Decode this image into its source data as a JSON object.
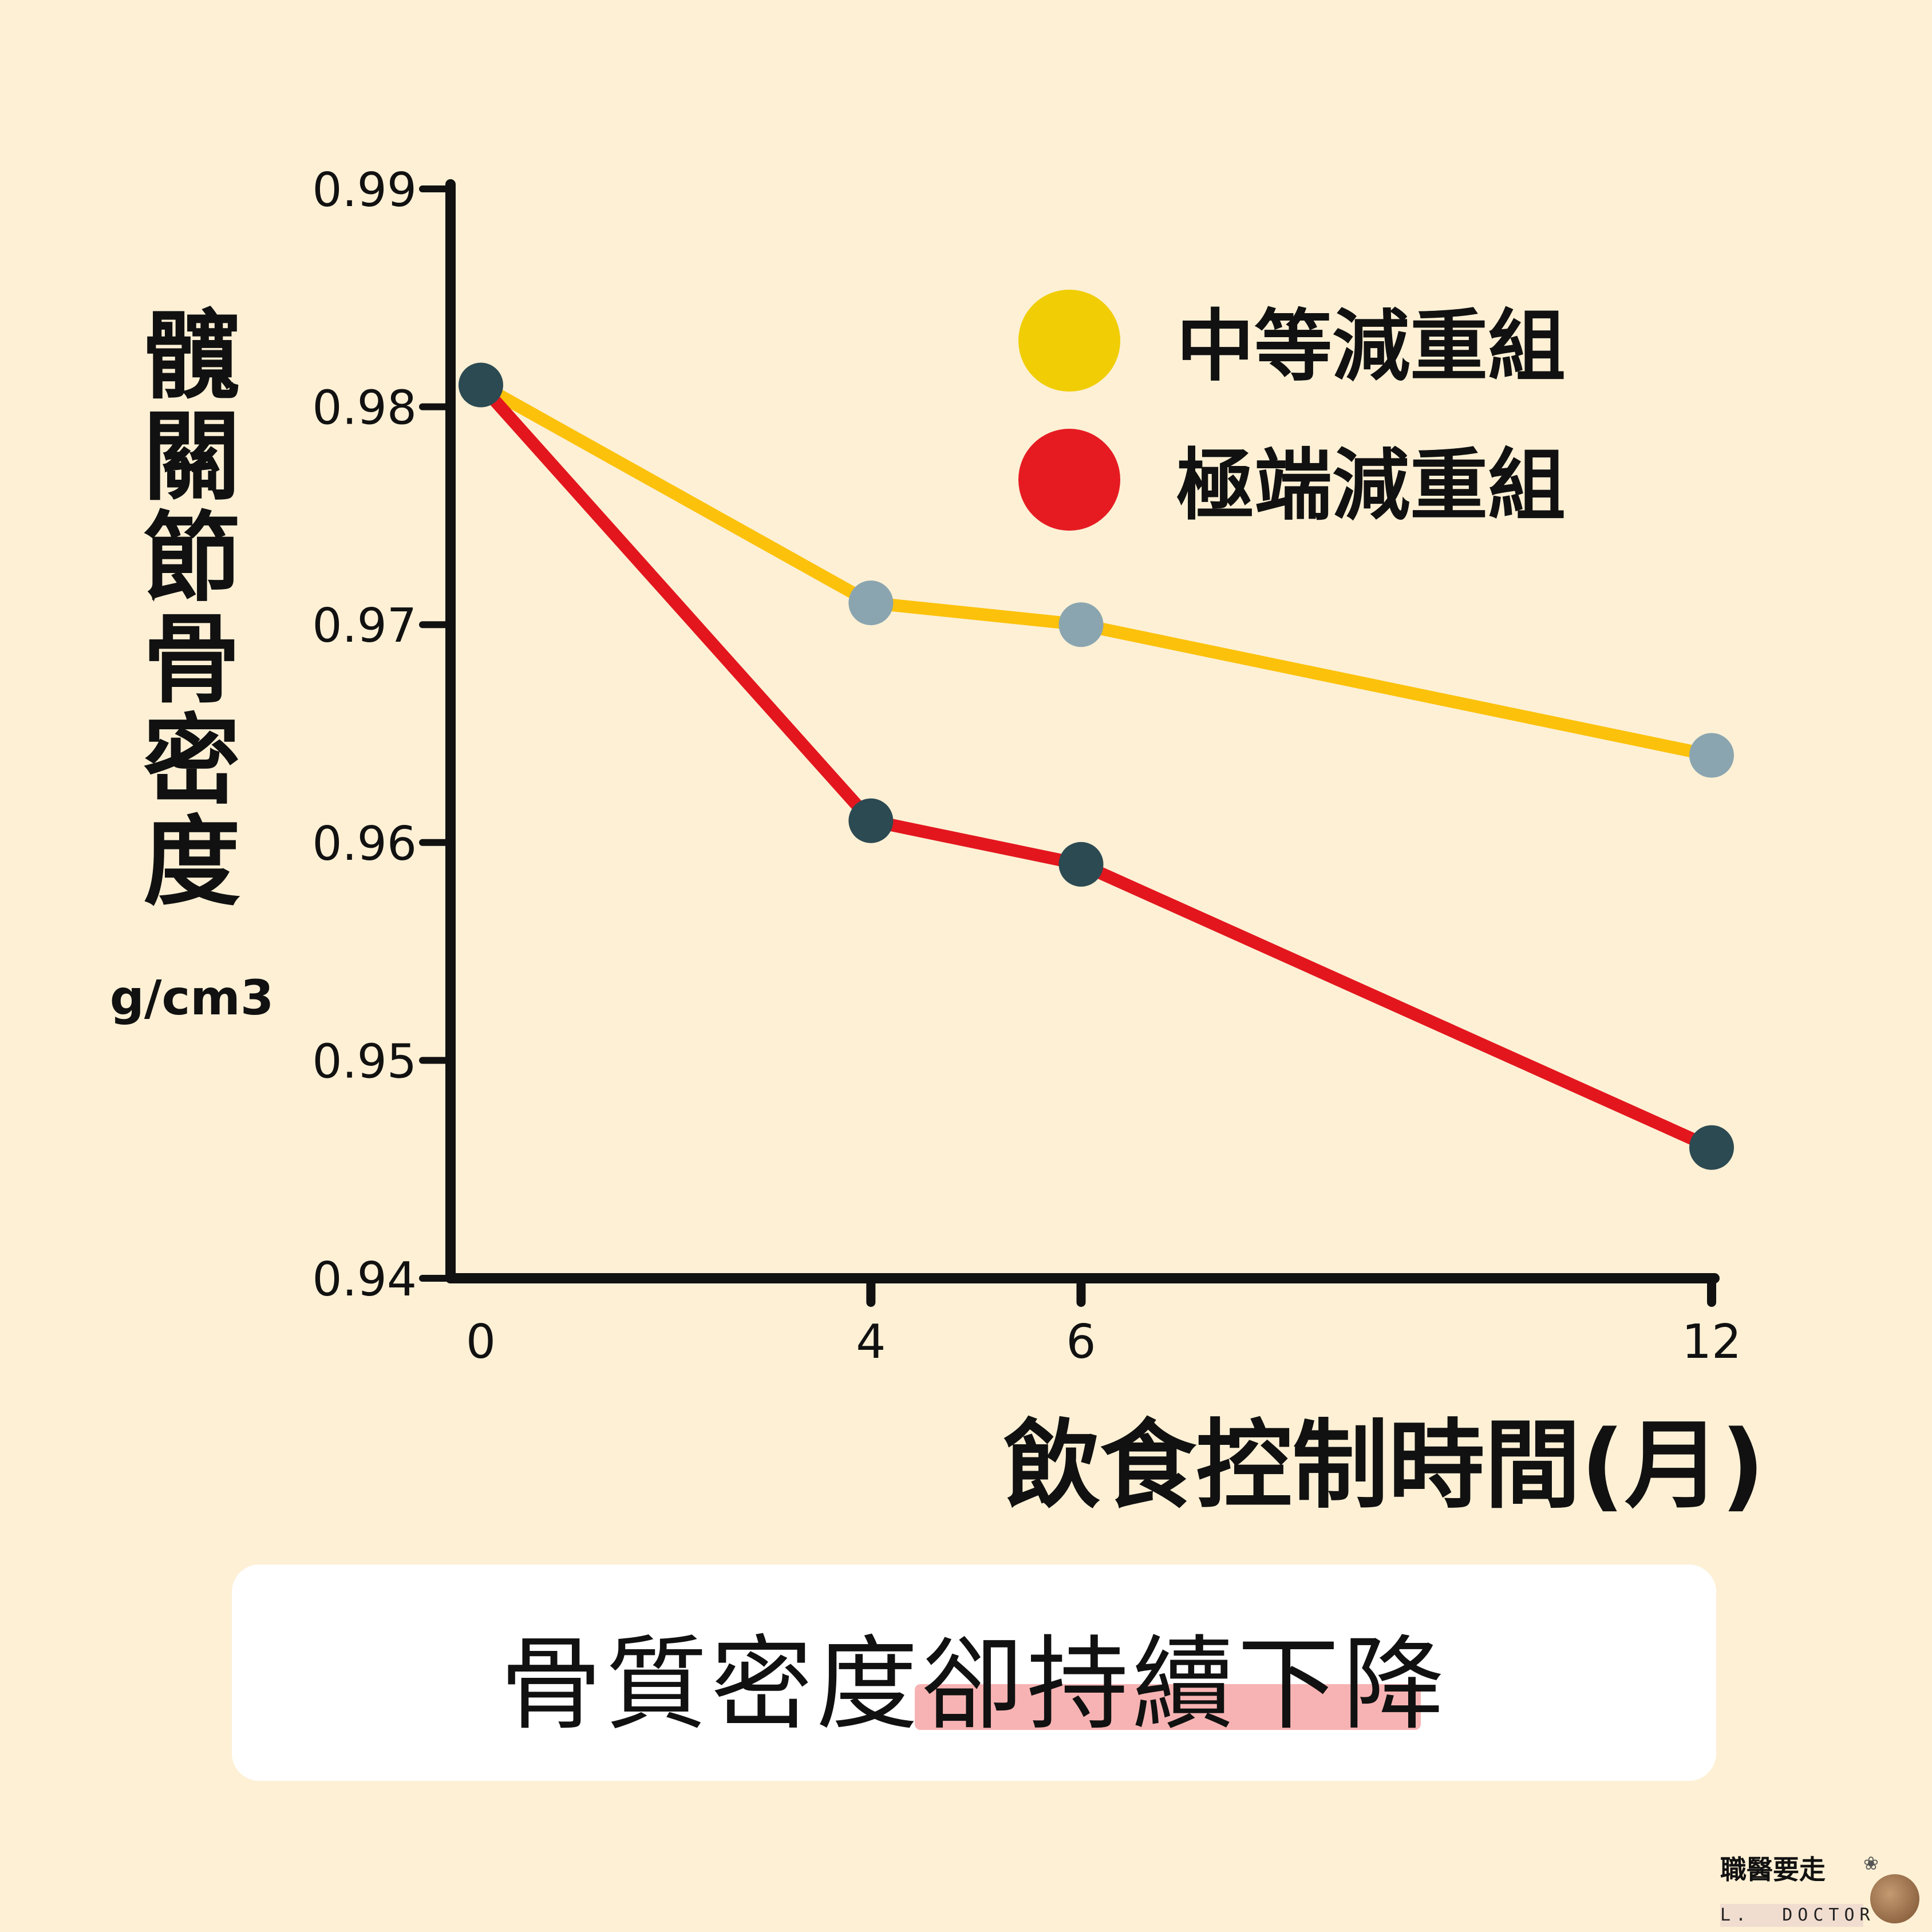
{
  "chart_data": {
    "type": "line",
    "title": "",
    "ylabel": "髖關節骨密度",
    "yunit": "g/cm3",
    "xlabel": "飲食控制時間(月)",
    "x": [
      0,
      4,
      6,
      12
    ],
    "x_ticks": [
      "0",
      "4",
      "6",
      "12"
    ],
    "ylim": [
      0.94,
      0.99
    ],
    "y_ticks": [
      "0.94",
      "0.95",
      "0.96",
      "0.97",
      "0.98",
      "0.99"
    ],
    "grid": false,
    "legend_position": "top-right",
    "series": [
      {
        "name": "中等減重組",
        "line_color": "#fcc10a",
        "legend_color": "#f0cd05",
        "marker_color": "#8aa5af",
        "values": [
          0.981,
          0.971,
          0.97,
          0.964
        ]
      },
      {
        "name": "極端減重組",
        "line_color": "#e3161e",
        "legend_color": "#e61b22",
        "marker_color": "#2c4a52",
        "values": [
          0.981,
          0.961,
          0.959,
          0.946
        ]
      }
    ]
  },
  "caption": {
    "text": "骨質密度卻持續下降",
    "highlight_color": "#f7b3b3"
  },
  "logo": {
    "name": "職醫要走",
    "subtitle": "L.  DOCTOR"
  }
}
